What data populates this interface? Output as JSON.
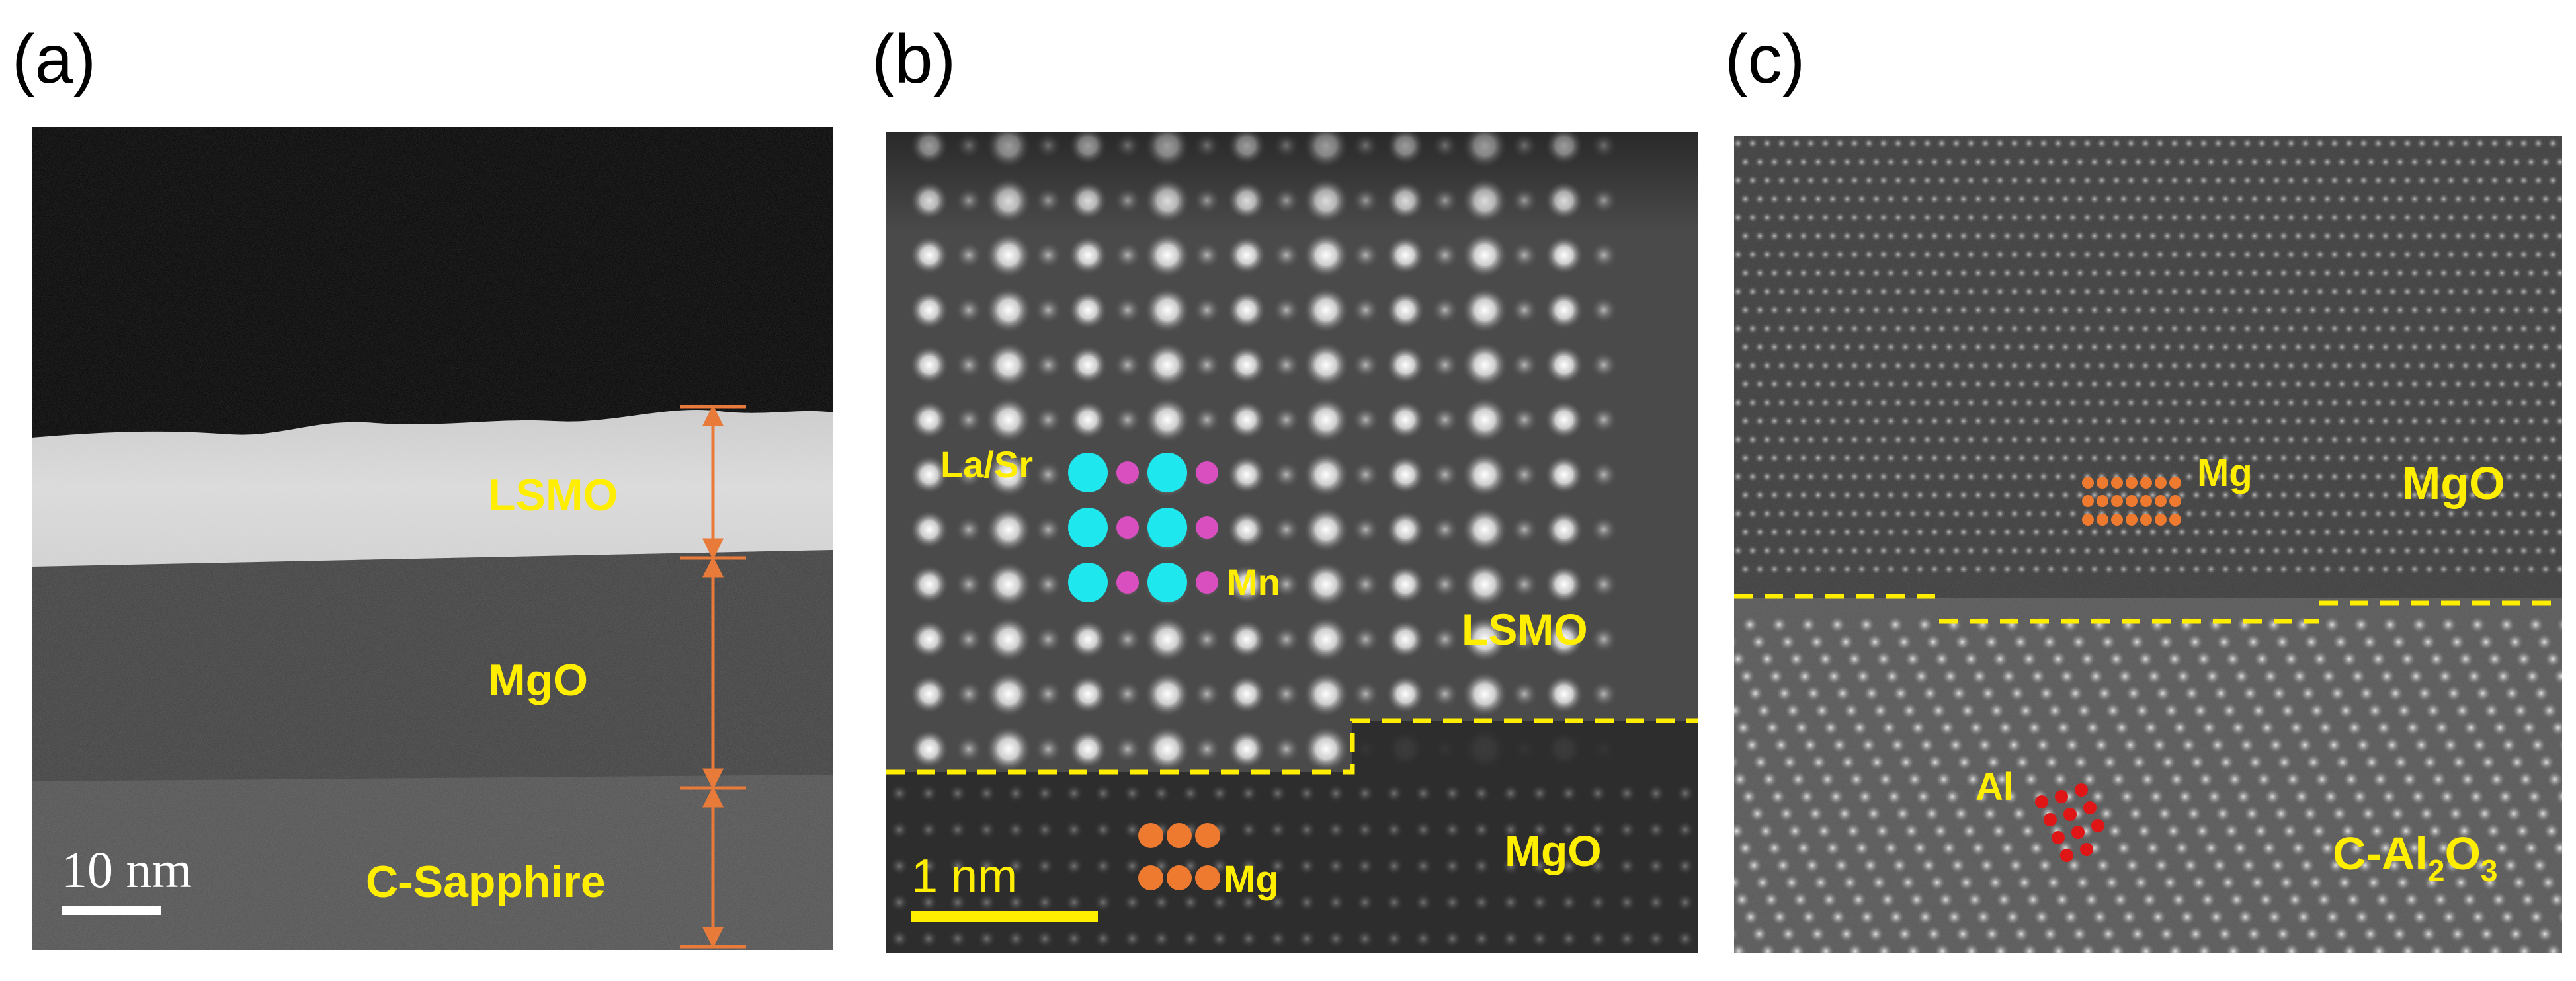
{
  "panels": {
    "a": {
      "tag": "(a)",
      "layers": {
        "top": "LSMO",
        "middle": "MgO",
        "bottom": "C-Sapphire"
      },
      "scale": "10 nm"
    },
    "b": {
      "tag": "(b)",
      "atoms": {
        "ab_site": "La/Sr",
        "b_site": "Mn",
        "substrate": "Mg"
      },
      "regions": {
        "film": "LSMO",
        "substrate": "MgO"
      },
      "scale": "1 nm"
    },
    "c": {
      "tag": "(c)",
      "atoms": {
        "upper": "Mg",
        "lower": "Al"
      },
      "regions": {
        "upper": "MgO",
        "lower_prefix": "C-Al",
        "lower_sub1": "2",
        "lower_mid": "O",
        "lower_sub2": "3"
      }
    }
  },
  "colors": {
    "label": "#ffee00",
    "arrow": "#e87a3a",
    "la_sr": "#1ee8ee",
    "mn": "#d94fc0",
    "mg": "#ee7a30",
    "al": "#e01515",
    "interface": "#ffee00"
  }
}
